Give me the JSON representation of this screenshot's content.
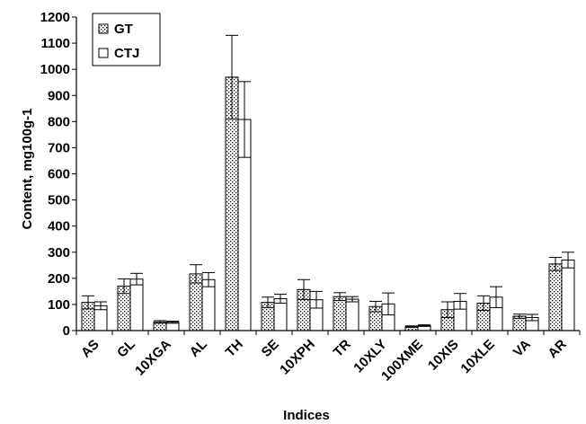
{
  "chart_data": {
    "type": "bar",
    "xlabel": "Indices",
    "ylabel": "Content, mg100g-1",
    "ylim": [
      0,
      1200
    ],
    "yticks": [
      0,
      100,
      200,
      300,
      400,
      500,
      600,
      700,
      800,
      900,
      1000,
      1100,
      1200
    ],
    "grid": false,
    "legend_position": "top-left",
    "categories": [
      "AS",
      "GL",
      "10XGA",
      "AL",
      "TH",
      "SE",
      "10XPH",
      "TR",
      "10XLY",
      "100XME",
      "10XIS",
      "10XLE",
      "VA",
      "AR"
    ],
    "series": [
      {
        "name": "GT",
        "pattern": "dotted",
        "values": [
          108,
          170,
          33,
          217,
          970,
          108,
          157,
          130,
          92,
          15,
          80,
          105,
          55,
          255
        ],
        "errors": [
          25,
          28,
          5,
          35,
          160,
          20,
          38,
          15,
          20,
          3,
          30,
          28,
          8,
          25
        ]
      },
      {
        "name": "CTJ",
        "pattern": "plain",
        "values": [
          95,
          197,
          32,
          195,
          808,
          122,
          118,
          120,
          102,
          19,
          112,
          128,
          50,
          270
        ],
        "errors": [
          15,
          22,
          4,
          27,
          145,
          17,
          32,
          10,
          42,
          3,
          30,
          40,
          12,
          30
        ]
      }
    ]
  }
}
